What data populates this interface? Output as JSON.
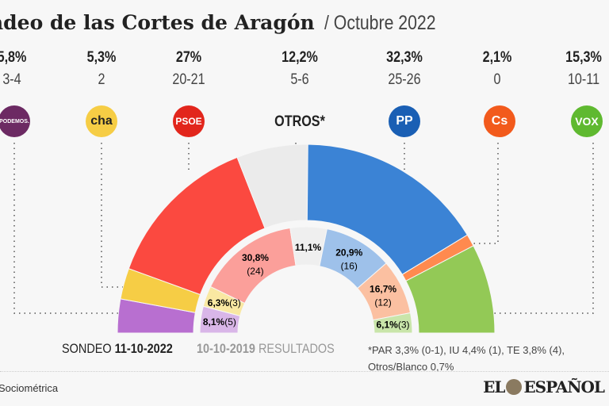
{
  "header": {
    "title": "ndeo de las Cortes de Aragón",
    "subtitle": "/ Octubre 2022"
  },
  "parties": [
    {
      "name": "PODEMOS.",
      "pct": "5,8%",
      "seats": "3-4",
      "color": "#b86fd0",
      "color_2019": "#d9b6e8",
      "icon": "podemos-logo"
    },
    {
      "name": "cha",
      "pct": "5,3%",
      "seats": "2",
      "color": "#f6cd45",
      "color_2019": "#f9e8a2",
      "icon": "cha-logo"
    },
    {
      "name": "PSOE",
      "pct": "27%",
      "seats": "20-21",
      "color": "#fb4940",
      "color_2019": "#fb9f9a",
      "icon": "psoe-logo"
    },
    {
      "name": "OTROS*",
      "pct": "12,2%",
      "seats": "5-6",
      "color": "#ebebeb",
      "color_2019": "#efefef",
      "icon": ""
    },
    {
      "name": "PP",
      "pct": "32,3%",
      "seats": "25-26",
      "color": "#3b83d5",
      "color_2019": "#9ec1ea",
      "icon": "pp-logo"
    },
    {
      "name": "Cs",
      "pct": "2,1%",
      "seats": "0",
      "color": "#ff8a4f",
      "color_2019": "#fbc0a1",
      "icon": "cs-logo"
    },
    {
      "name": "VOX",
      "pct": "15,3%",
      "seats": "10-11",
      "color": "#93c956",
      "color_2019": "#c9e5aa",
      "icon": "vox-logo"
    }
  ],
  "chart_data": {
    "type": "pie",
    "subtype": "semicircle-donut",
    "categories": [
      "Podemos",
      "CHA",
      "PSOE",
      "Otros",
      "PP",
      "Cs",
      "Vox"
    ],
    "series": [
      {
        "name": "SONDEO 11-10-2022",
        "values": [
          5.8,
          5.3,
          27,
          12.2,
          32.3,
          2.1,
          15.3
        ]
      },
      {
        "name": "10-10-2019 RESULTADOS",
        "values": [
          8.1,
          6.3,
          30.8,
          11.1,
          20.9,
          16.7,
          6.1
        ],
        "labels": [
          "8,1%",
          "6,3%",
          "30,8%",
          "11,1%",
          "20,9%",
          "16,7%",
          "6,1%"
        ],
        "seat_labels": [
          "(5)",
          "(3)",
          "(24)",
          "",
          "(16)",
          "(12)",
          "(3)"
        ]
      }
    ]
  },
  "legend": {
    "sondeo": "SONDEO",
    "sondeo_date": "11-10-2022",
    "result_date": "10-10-2019",
    "result": "RESULTADOS"
  },
  "note": "*PAR 3,3% (0-1), IU 4,4% (1), TE 3,8% (4), Otros/Blanco 0,7%",
  "source": "Sociométrica",
  "brand": "EL ESPAÑOL"
}
